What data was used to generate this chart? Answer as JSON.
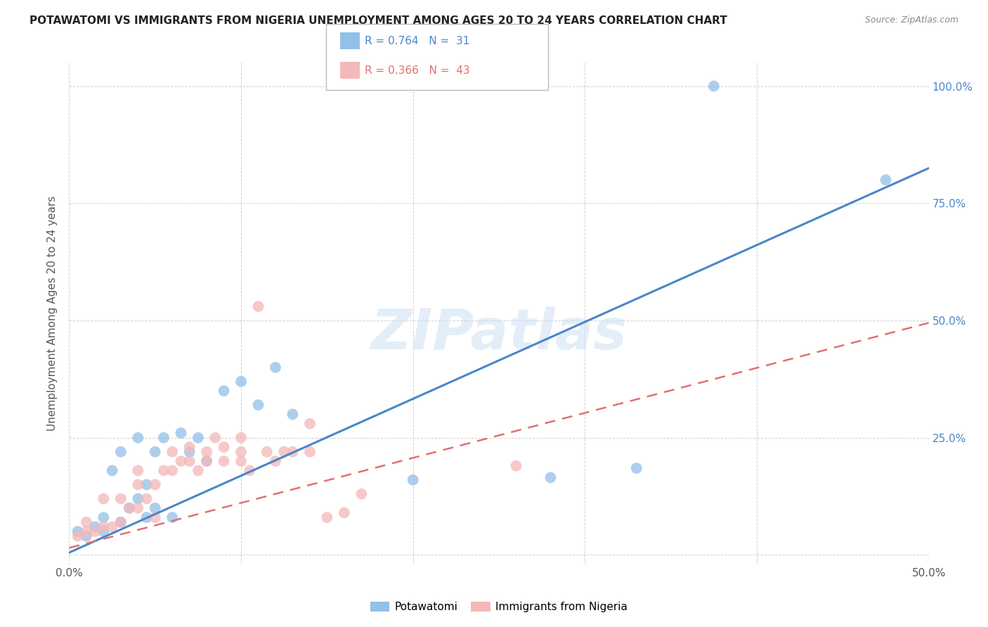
{
  "title": "POTAWATOMI VS IMMIGRANTS FROM NIGERIA UNEMPLOYMENT AMONG AGES 20 TO 24 YEARS CORRELATION CHART",
  "source": "Source: ZipAtlas.com",
  "ylabel": "Unemployment Among Ages 20 to 24 years",
  "xlim": [
    0.0,
    0.5
  ],
  "ylim": [
    -0.02,
    1.05
  ],
  "watermark": "ZIPatlas",
  "blue_color": "#92c0e8",
  "pink_color": "#f4b8b8",
  "blue_line_color": "#4a86c8",
  "pink_line_color": "#e07070",
  "blue_line_slope": 1.64,
  "blue_line_intercept": 0.005,
  "pink_line_slope": 0.96,
  "pink_line_intercept": 0.015,
  "potawatomi_x": [
    0.005,
    0.01,
    0.015,
    0.02,
    0.02,
    0.025,
    0.03,
    0.03,
    0.035,
    0.04,
    0.04,
    0.045,
    0.045,
    0.05,
    0.05,
    0.055,
    0.06,
    0.065,
    0.07,
    0.075,
    0.08,
    0.09,
    0.1,
    0.11,
    0.12,
    0.13,
    0.2,
    0.28,
    0.33,
    0.375,
    0.475
  ],
  "potawatomi_y": [
    0.05,
    0.04,
    0.06,
    0.05,
    0.08,
    0.18,
    0.07,
    0.22,
    0.1,
    0.12,
    0.25,
    0.08,
    0.15,
    0.1,
    0.22,
    0.25,
    0.08,
    0.26,
    0.22,
    0.25,
    0.2,
    0.35,
    0.37,
    0.32,
    0.4,
    0.3,
    0.16,
    0.165,
    0.185,
    1.0,
    0.8
  ],
  "nigeria_x": [
    0.005,
    0.01,
    0.01,
    0.015,
    0.02,
    0.02,
    0.025,
    0.03,
    0.03,
    0.035,
    0.04,
    0.04,
    0.04,
    0.045,
    0.05,
    0.05,
    0.055,
    0.06,
    0.06,
    0.065,
    0.07,
    0.07,
    0.075,
    0.08,
    0.08,
    0.085,
    0.09,
    0.09,
    0.1,
    0.1,
    0.1,
    0.105,
    0.11,
    0.115,
    0.12,
    0.125,
    0.13,
    0.14,
    0.14,
    0.15,
    0.16,
    0.17,
    0.26
  ],
  "nigeria_y": [
    0.04,
    0.05,
    0.07,
    0.05,
    0.06,
    0.12,
    0.06,
    0.07,
    0.12,
    0.1,
    0.1,
    0.15,
    0.18,
    0.12,
    0.08,
    0.15,
    0.18,
    0.18,
    0.22,
    0.2,
    0.2,
    0.23,
    0.18,
    0.2,
    0.22,
    0.25,
    0.2,
    0.23,
    0.2,
    0.22,
    0.25,
    0.18,
    0.53,
    0.22,
    0.2,
    0.22,
    0.22,
    0.22,
    0.28,
    0.08,
    0.09,
    0.13,
    0.19
  ]
}
